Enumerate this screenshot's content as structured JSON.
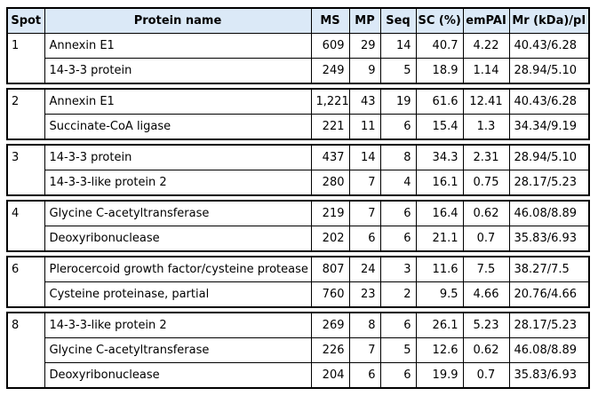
{
  "table": {
    "columns": [
      "Spot",
      "Protein name",
      "MS",
      "MP",
      "Seq",
      "SC (%)",
      "emPAI",
      "Mr (kDa)/pI"
    ],
    "groups": [
      {
        "spot": "1",
        "rows": [
          {
            "protein": "Annexin E1",
            "ms": "609",
            "mp": "29",
            "seq": "14",
            "sc": "40.7",
            "empai": "4.22",
            "mr_pi": "40.43/6.28"
          },
          {
            "protein": "14-3-3 protein",
            "ms": "249",
            "mp": "9",
            "seq": "5",
            "sc": "18.9",
            "empai": "1.14",
            "mr_pi": "28.94/5.10"
          }
        ]
      },
      {
        "spot": "2",
        "rows": [
          {
            "protein": "Annexin E1",
            "ms": "1,221",
            "mp": "43",
            "seq": "19",
            "sc": "61.6",
            "empai": "12.41",
            "mr_pi": "40.43/6.28"
          },
          {
            "protein": "Succinate-CoA ligase",
            "ms": "221",
            "mp": "11",
            "seq": "6",
            "sc": "15.4",
            "empai": "1.3",
            "mr_pi": "34.34/9.19"
          }
        ]
      },
      {
        "spot": "3",
        "rows": [
          {
            "protein": "14-3-3 protein",
            "ms": "437",
            "mp": "14",
            "seq": "8",
            "sc": "34.3",
            "empai": "2.31",
            "mr_pi": "28.94/5.10"
          },
          {
            "protein": "14-3-3-like protein 2",
            "ms": "280",
            "mp": "7",
            "seq": "4",
            "sc": "16.1",
            "empai": "0.75",
            "mr_pi": "28.17/5.23"
          }
        ]
      },
      {
        "spot": "4",
        "rows": [
          {
            "protein": "Glycine C-acetyltransferase",
            "ms": "219",
            "mp": "7",
            "seq": "6",
            "sc": "16.4",
            "empai": "0.62",
            "mr_pi": "46.08/8.89"
          },
          {
            "protein": "Deoxyribonuclease",
            "ms": "202",
            "mp": "6",
            "seq": "6",
            "sc": "21.1",
            "empai": "0.7",
            "mr_pi": "35.83/6.93"
          }
        ]
      },
      {
        "spot": "6",
        "rows": [
          {
            "protein": "Plerocercoid growth factor/cysteine protease",
            "ms": "807",
            "mp": "24",
            "seq": "3",
            "sc": "11.6",
            "empai": "7.5",
            "mr_pi": "38.27/7.5"
          },
          {
            "protein": "Cysteine proteinase, partial",
            "ms": "760",
            "mp": "23",
            "seq": "2",
            "sc": "9.5",
            "empai": "4.66",
            "mr_pi": "20.76/4.66"
          }
        ]
      },
      {
        "spot": "8",
        "rows": [
          {
            "protein": "14-3-3-like protein 2",
            "ms": "269",
            "mp": "8",
            "seq": "6",
            "sc": "26.1",
            "empai": "5.23",
            "mr_pi": "28.17/5.23"
          },
          {
            "protein": "Glycine C-acetyltransferase",
            "ms": "226",
            "mp": "7",
            "seq": "5",
            "sc": "12.6",
            "empai": "0.62",
            "mr_pi": "46.08/8.89"
          },
          {
            "protein": "Deoxyribonuclease",
            "ms": "204",
            "mp": "6",
            "seq": "6",
            "sc": "19.9",
            "empai": "0.7",
            "mr_pi": "35.83/6.93"
          }
        ]
      }
    ]
  },
  "colors": {
    "header_bg": "#dbe9f7",
    "border": "#000000",
    "text": "#000000"
  }
}
